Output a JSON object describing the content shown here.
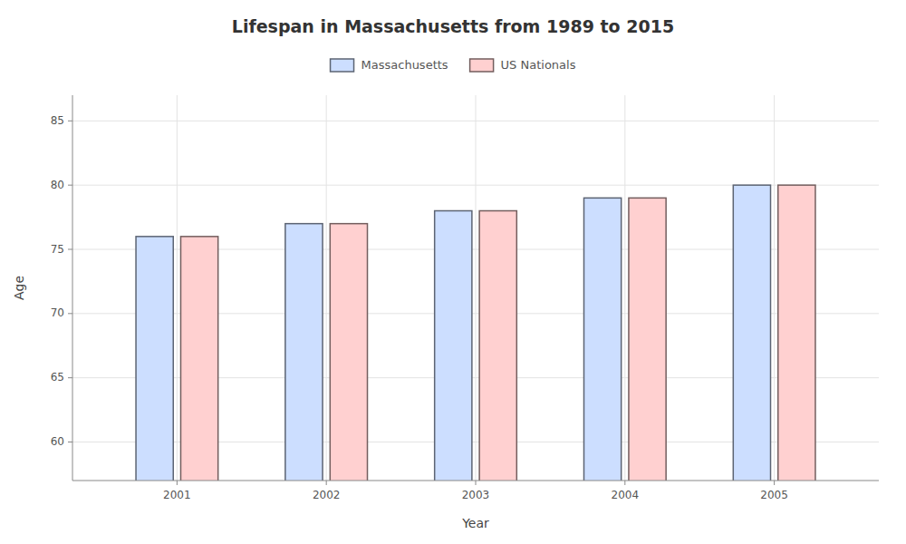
{
  "chart_data": {
    "type": "bar",
    "title": "Lifespan in Massachusetts from 1989 to 2015",
    "xlabel": "Year",
    "ylabel": "Age",
    "categories": [
      "2001",
      "2002",
      "2003",
      "2004",
      "2005"
    ],
    "series": [
      {
        "name": "Massachusetts",
        "color": "#ccdeff",
        "values": [
          76.0,
          77.0,
          78.0,
          79.0,
          80.0
        ]
      },
      {
        "name": "US Nationals",
        "color": "#ffd0d0",
        "values": [
          76.0,
          77.0,
          78.0,
          79.0,
          80.0
        ]
      }
    ],
    "ylim": [
      57,
      87
    ],
    "yticks": [
      60,
      65,
      70,
      75,
      80,
      85
    ],
    "grid": true,
    "legend": "top"
  }
}
